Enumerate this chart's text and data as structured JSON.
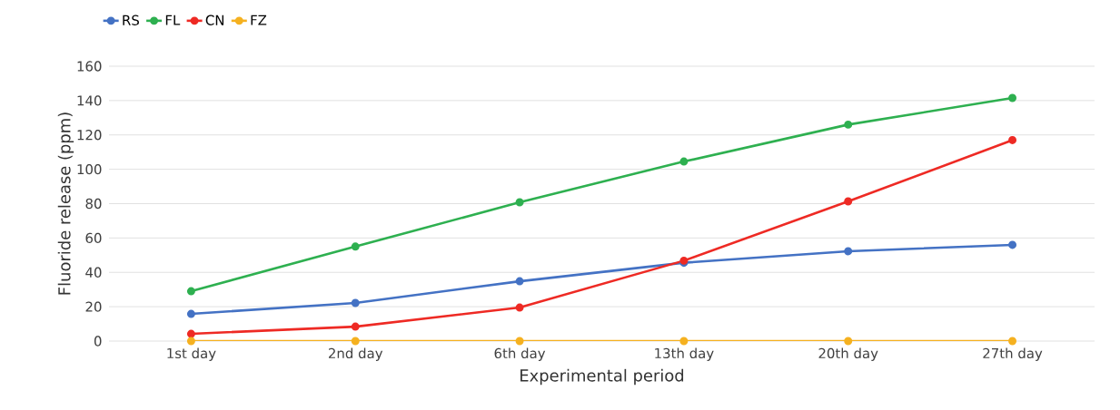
{
  "chart_data": {
    "type": "line",
    "xlabel": "Experimental period",
    "ylabel": "Fluoride release (ppm)",
    "categories": [
      "1st day",
      "2nd day",
      "6th day",
      "13th day",
      "20th day",
      "27th day"
    ],
    "series": [
      {
        "name": "RS",
        "color": "#4472c4",
        "values": [
          15.8,
          22.2,
          34.8,
          45.6,
          52.3,
          56
        ]
      },
      {
        "name": "FL",
        "color": "#2eb050",
        "values": [
          29,
          55,
          80.8,
          104.5,
          126,
          141.5
        ]
      },
      {
        "name": "CN",
        "color": "#ee2a24",
        "values": [
          4.2,
          8.4,
          19.5,
          46.8,
          81.3,
          117
        ]
      },
      {
        "name": "FZ",
        "color": "#f5b120",
        "values": [
          0,
          0,
          0,
          0,
          0,
          0
        ]
      }
    ],
    "ylim": [
      0,
      160
    ],
    "yticks": [
      0,
      20,
      40,
      60,
      80,
      100,
      120,
      140,
      160
    ],
    "grid": "y",
    "legend": "top left",
    "marker": "circle",
    "line_style": "solid"
  }
}
